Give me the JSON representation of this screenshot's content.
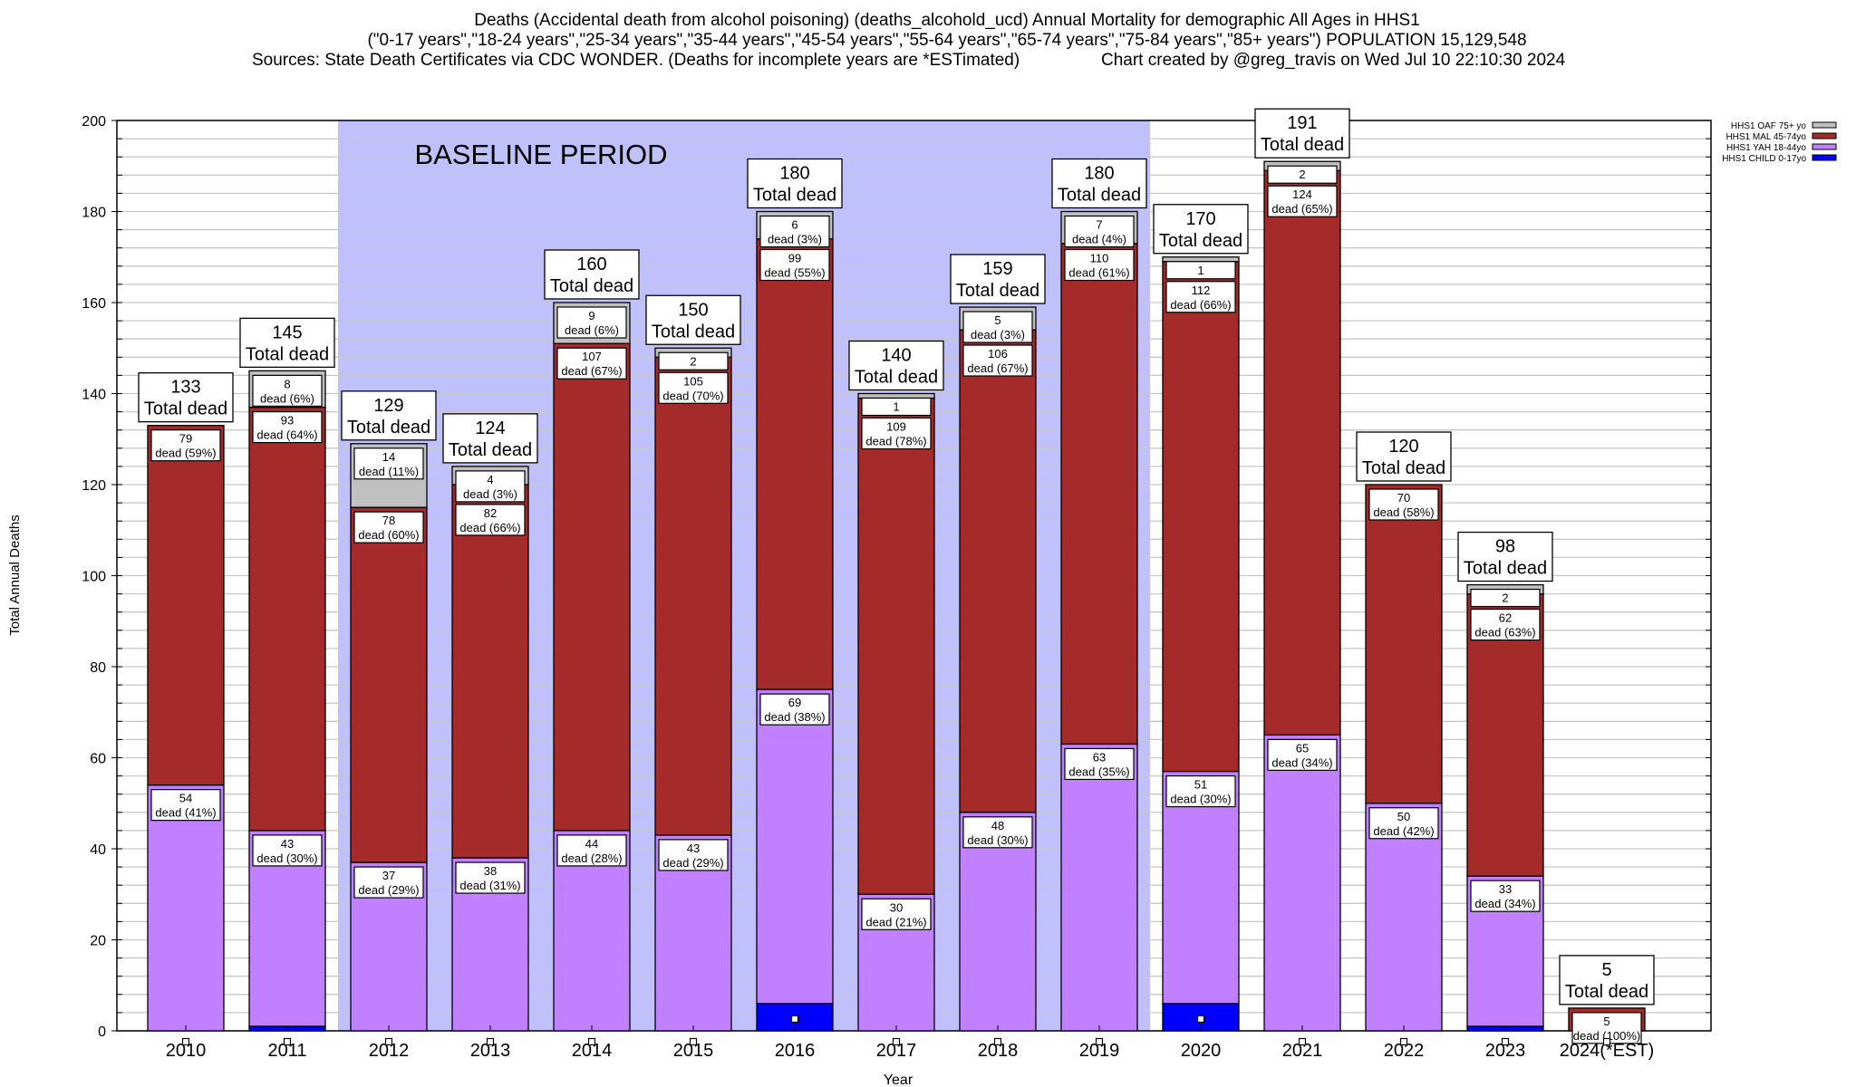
{
  "chart_data": {
    "type": "bar",
    "stacked": true,
    "title_lines": [
      "Deaths (Accidental death from alcohol poisoning) (deaths_alcohold_ucd) Annual Mortality for demographic All Ages in HHS1",
      "(\"0-17 years\",\"18-24 years\",\"25-34 years\",\"35-44 years\",\"45-54 years\",\"55-64 years\",\"65-74 years\",\"75-84 years\",\"85+ years\") POPULATION 15,129,548",
      "Sources: State Death Certificates via CDC WONDER. (Deaths for incomplete years are *ESTimated)",
      "Chart created by @greg_travis on Wed Jul 10 22:10:30 2024"
    ],
    "xlabel": "Year",
    "ylabel": "Total Annual Deaths",
    "ylim": [
      0,
      200
    ],
    "yticks": [
      0,
      20,
      40,
      60,
      80,
      100,
      120,
      140,
      160,
      180,
      200
    ],
    "grid": true,
    "legend_position": "top-right",
    "baseline_label": "BASELINE PERIOD",
    "baseline_range": [
      "2012",
      "2019"
    ],
    "total_suffix": "Total dead",
    "dead_word": "dead",
    "categories": [
      "2010",
      "2011",
      "2012",
      "2013",
      "2014",
      "2015",
      "2016",
      "2017",
      "2018",
      "2019",
      "2020",
      "2021",
      "2022",
      "2023",
      "2024(*EST)"
    ],
    "totals": [
      133,
      145,
      129,
      124,
      160,
      150,
      180,
      140,
      159,
      180,
      170,
      191,
      120,
      98,
      5
    ],
    "series": [
      {
        "name": "HHS1 CHILD 0-17yo",
        "color": "#0000ff",
        "values": [
          0,
          1,
          0,
          0,
          0,
          0,
          6,
          0,
          0,
          0,
          6,
          0,
          0,
          1,
          0
        ],
        "pct": [
          null,
          null,
          null,
          null,
          null,
          null,
          null,
          null,
          null,
          null,
          null,
          null,
          null,
          null,
          null
        ]
      },
      {
        "name": "HHS1 YAH 18-44yo",
        "color": "#c080ff",
        "values": [
          54,
          43,
          37,
          38,
          44,
          43,
          69,
          30,
          48,
          63,
          51,
          65,
          50,
          33,
          0
        ],
        "pct": [
          41,
          30,
          29,
          31,
          28,
          29,
          38,
          21,
          30,
          35,
          30,
          34,
          42,
          34,
          null
        ]
      },
      {
        "name": "HHS1 MAL 45-74yo",
        "color": "#a52a2a",
        "values": [
          79,
          93,
          78,
          82,
          107,
          105,
          99,
          109,
          106,
          110,
          112,
          124,
          70,
          62,
          5
        ],
        "pct": [
          59,
          64,
          60,
          66,
          67,
          70,
          55,
          78,
          67,
          61,
          66,
          65,
          58,
          63,
          100
        ]
      },
      {
        "name": "HHS1 OAF 75+ yo",
        "color": "#c0c0c0",
        "values": [
          0,
          8,
          14,
          4,
          9,
          2,
          6,
          1,
          5,
          7,
          1,
          2,
          0,
          2,
          0
        ],
        "pct": [
          null,
          6,
          11,
          3,
          6,
          null,
          3,
          null,
          3,
          4,
          null,
          null,
          null,
          null,
          null
        ]
      }
    ],
    "baseline_color": "#c0c0ff"
  }
}
